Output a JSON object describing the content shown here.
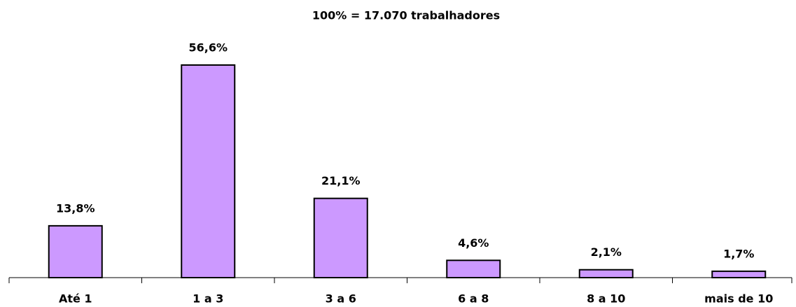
{
  "chart_data": {
    "type": "bar",
    "title": "100% = 17.070 trabalhadores",
    "categories": [
      "Até 1",
      "1 a 3",
      "3 a 6",
      "6 a 8",
      "8 a 10",
      "mais de 10"
    ],
    "values": [
      13.8,
      56.6,
      21.1,
      4.6,
      2.1,
      1.7
    ],
    "value_labels": [
      "13,8%",
      "56,6%",
      "21,1%",
      "4,6%",
      "2,1%",
      "1,7%"
    ],
    "color": "#cc99ff"
  }
}
